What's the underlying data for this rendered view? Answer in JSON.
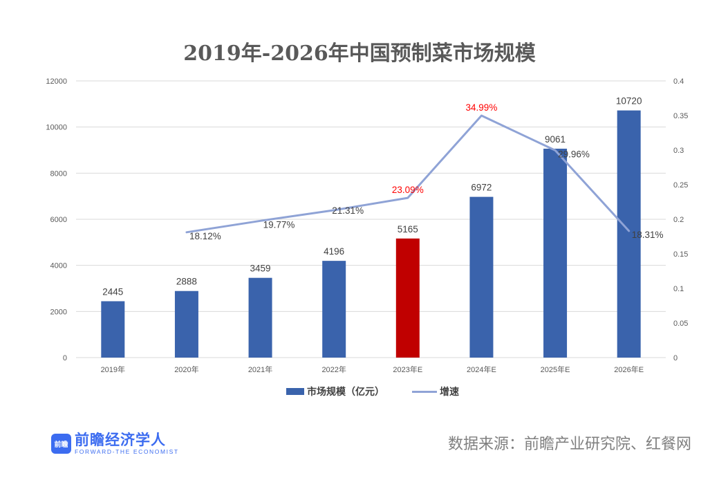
{
  "chart_data": {
    "type": "bar",
    "title": "2019年-2026年中国预制菜市场规模",
    "categories": [
      "2019年",
      "2020年",
      "2021年",
      "2022年",
      "2023年E",
      "2024年E",
      "2025年E",
      "2026年E"
    ],
    "series": [
      {
        "name": "市场规模（亿元）",
        "type": "bar",
        "axis": "left",
        "color": "#3A63AC",
        "highlight_color": "#C00000",
        "highlight_index": 4,
        "values": [
          2445,
          2888,
          3459,
          4196,
          5165,
          6972,
          9061,
          10720
        ],
        "labels": [
          "2445",
          "2888",
          "3459",
          "4196",
          "5165",
          "6972",
          "9061",
          "10720"
        ]
      },
      {
        "name": "增速",
        "type": "line",
        "axis": "right",
        "color": "#8FA3D6",
        "values": [
          null,
          0.1812,
          0.1977,
          0.2131,
          0.2309,
          0.3499,
          0.2996,
          0.1831
        ],
        "labels": [
          null,
          "18.12%",
          "19.77%",
          "21.31%",
          "23.09%",
          "34.99%",
          "29.96%",
          "18.31%"
        ],
        "label_colors": [
          null,
          "#404040",
          "#404040",
          "#404040",
          "#FF0000",
          "#FF0000",
          "#404040",
          "#404040"
        ]
      }
    ],
    "y_left": {
      "min": 0,
      "max": 12000,
      "ticks": [
        "0",
        "2000",
        "4000",
        "6000",
        "8000",
        "10000",
        "12000"
      ]
    },
    "y_right": {
      "min": 0,
      "max": 0.4,
      "ticks": [
        "0",
        "0.05",
        "0.1",
        "0.15",
        "0.2",
        "0.25",
        "0.3",
        "0.35",
        "0.4"
      ]
    },
    "grid": true,
    "legend_position": "bottom",
    "xlabel": "",
    "ylabel": ""
  },
  "legend": {
    "bar_label": "市场规模（亿元）",
    "line_label": "增速"
  },
  "footer": {
    "logo_mark": "前瞻",
    "logo_cn": "前瞻经济学人",
    "logo_en": "FORWARD-THE ECONOMIST",
    "source": "数据来源：前瞻产业研究院、红餐网"
  }
}
